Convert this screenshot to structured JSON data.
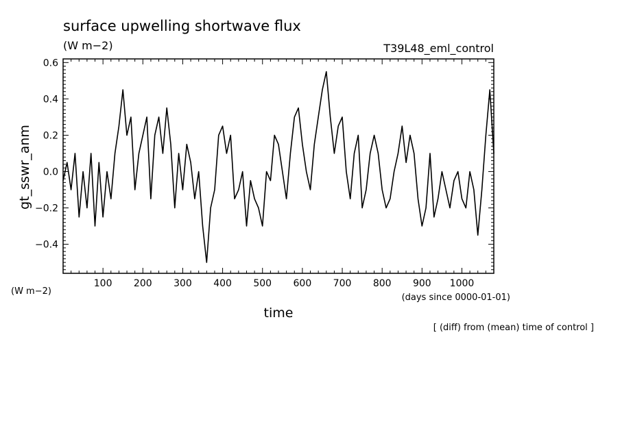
{
  "chart_data": {
    "type": "line",
    "title": "surface upwelling shortwave flux",
    "units": "(W m−2)",
    "run_name": "T39L48_eml_control",
    "ylabel": "gt_sswr_anm",
    "ylabel_units": "(W m−2)",
    "xlabel": "time",
    "xunits": "(days since 0000-01-01)",
    "note": "[ (diff) from (mean) time of control ]",
    "xlim": [
      0,
      1080
    ],
    "ylim": [
      -0.56,
      0.62
    ],
    "x_ticks": [
      100,
      200,
      300,
      400,
      500,
      600,
      700,
      800,
      900,
      1000
    ],
    "y_ticks": [
      -0.4,
      -0.2,
      0.0,
      0.2,
      0.4,
      0.6
    ],
    "y_tick_labels": [
      "−0.4",
      "−0.2",
      "0.0",
      "0.2",
      "0.4",
      "0.6"
    ],
    "x_tick_labels": [
      "100",
      "200",
      "300",
      "400",
      "500",
      "600",
      "700",
      "800",
      "900",
      "1000"
    ],
    "grid": false,
    "series": [
      {
        "x": [
          0,
          10,
          20,
          30,
          40,
          50,
          60,
          70,
          80,
          90,
          100,
          110,
          120,
          130,
          140,
          150,
          160,
          170,
          180,
          190,
          200,
          210,
          220,
          230,
          240,
          250,
          260,
          270,
          280,
          290,
          300,
          310,
          320,
          330,
          340,
          350,
          360,
          370,
          380,
          390,
          400,
          410,
          420,
          430,
          440,
          450,
          460,
          470,
          480,
          490,
          500,
          510,
          520,
          530,
          540,
          550,
          560,
          570,
          580,
          590,
          600,
          610,
          620,
          630,
          640,
          650,
          660,
          670,
          680,
          690,
          700,
          710,
          720,
          730,
          740,
          750,
          760,
          770,
          780,
          790,
          800,
          810,
          820,
          830,
          840,
          850,
          860,
          870,
          880,
          890,
          900,
          910,
          920,
          930,
          940,
          950,
          960,
          970,
          980,
          990,
          1000,
          1010,
          1020,
          1030,
          1040,
          1050,
          1060,
          1070,
          1080
        ],
        "y": [
          -0.05,
          0.05,
          -0.1,
          0.1,
          -0.25,
          0.0,
          -0.2,
          0.1,
          -0.3,
          0.05,
          -0.25,
          0.0,
          -0.15,
          0.1,
          0.25,
          0.45,
          0.2,
          0.3,
          -0.1,
          0.1,
          0.2,
          0.3,
          -0.15,
          0.2,
          0.3,
          0.1,
          0.35,
          0.15,
          -0.2,
          0.1,
          -0.1,
          0.15,
          0.05,
          -0.15,
          0.0,
          -0.3,
          -0.5,
          -0.2,
          -0.1,
          0.2,
          0.25,
          0.1,
          0.2,
          -0.15,
          -0.1,
          0.0,
          -0.3,
          -0.05,
          -0.15,
          -0.2,
          -0.3,
          0.0,
          -0.05,
          0.2,
          0.15,
          0.0,
          -0.15,
          0.1,
          0.3,
          0.35,
          0.15,
          0.0,
          -0.1,
          0.15,
          0.3,
          0.45,
          0.55,
          0.3,
          0.1,
          0.25,
          0.3,
          0.0,
          -0.15,
          0.1,
          0.2,
          -0.2,
          -0.1,
          0.1,
          0.2,
          0.1,
          -0.1,
          -0.2,
          -0.15,
          0.0,
          0.1,
          0.25,
          0.05,
          0.2,
          0.1,
          -0.15,
          -0.3,
          -0.2,
          0.1,
          -0.25,
          -0.15,
          0.0,
          -0.1,
          -0.2,
          -0.05,
          0.0,
          -0.15,
          -0.2,
          0.0,
          -0.1,
          -0.35,
          -0.1,
          0.2,
          0.45,
          0.1
        ]
      }
    ]
  }
}
